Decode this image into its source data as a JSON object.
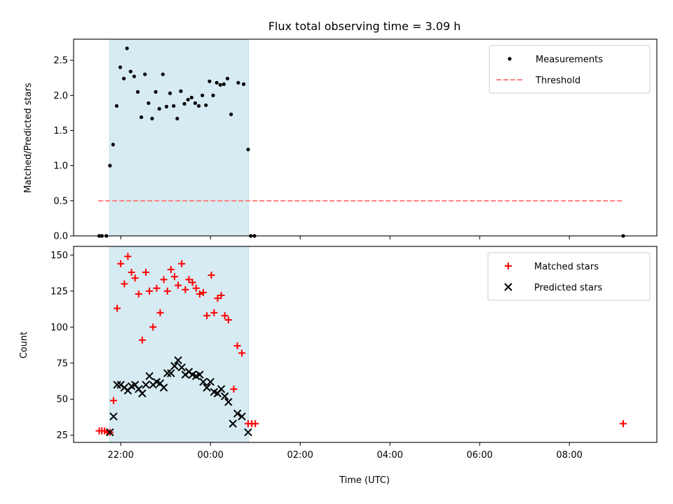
{
  "chart_data": {
    "title": "Flux total observing time = 3.09 h",
    "type": "scatter",
    "shared_x": {
      "label": "Time (UTC)",
      "unit": "hours relative to 00:00 UTC",
      "range": [
        -3.05,
        9.95
      ],
      "ticks": [
        -2,
        0,
        2,
        4,
        6,
        8
      ],
      "tick_labels": [
        "22:00",
        "00:00",
        "02:00",
        "04:00",
        "06:00",
        "08:00"
      ]
    },
    "shaded_span": {
      "x": [
        -2.25,
        0.85
      ],
      "color": "#add8e6"
    },
    "panels": [
      {
        "ylabel": "Matched/Predicted stars",
        "ylim": [
          0,
          2.8
        ],
        "yticks": [
          0.0,
          0.5,
          1.0,
          1.5,
          2.0,
          2.5
        ],
        "ytick_labels": [
          "0.0",
          "0.5",
          "1.0",
          "1.5",
          "2.0",
          "2.5"
        ],
        "legend_position": "upper right",
        "series": [
          {
            "name": "Measurements",
            "marker": "dot",
            "color": "#000000",
            "points": [
              [
                -2.48,
                0.0
              ],
              [
                -2.42,
                0.0
              ],
              [
                -2.32,
                0.0
              ],
              [
                -2.24,
                1.0
              ],
              [
                -2.17,
                1.3
              ],
              [
                -2.09,
                1.85
              ],
              [
                -2.01,
                2.4
              ],
              [
                -1.93,
                2.24
              ],
              [
                -1.86,
                2.67
              ],
              [
                -1.78,
                2.34
              ],
              [
                -1.7,
                2.27
              ],
              [
                -1.62,
                2.05
              ],
              [
                -1.54,
                1.69
              ],
              [
                -1.46,
                2.3
              ],
              [
                -1.38,
                1.89
              ],
              [
                -1.3,
                1.67
              ],
              [
                -1.22,
                2.05
              ],
              [
                -1.14,
                1.81
              ],
              [
                -1.06,
                2.3
              ],
              [
                -0.98,
                1.84
              ],
              [
                -0.9,
                2.03
              ],
              [
                -0.82,
                1.85
              ],
              [
                -0.74,
                1.67
              ],
              [
                -0.66,
                2.06
              ],
              [
                -0.58,
                1.88
              ],
              [
                -0.5,
                1.94
              ],
              [
                -0.42,
                1.97
              ],
              [
                -0.34,
                1.89
              ],
              [
                -0.26,
                1.85
              ],
              [
                -0.18,
                2.0
              ],
              [
                -0.1,
                1.86
              ],
              [
                -0.02,
                2.2
              ],
              [
                0.06,
                2.0
              ],
              [
                0.14,
                2.18
              ],
              [
                0.22,
                2.15
              ],
              [
                0.3,
                2.16
              ],
              [
                0.38,
                2.24
              ],
              [
                0.46,
                1.73
              ],
              [
                0.62,
                2.18
              ],
              [
                0.74,
                2.16
              ],
              [
                0.84,
                1.23
              ],
              [
                0.9,
                0.0
              ],
              [
                0.98,
                0.0
              ],
              [
                9.2,
                0.0
              ]
            ]
          },
          {
            "name": "Threshold",
            "marker": "dashed-line",
            "color": "#ff7f7f",
            "points": [
              [
                -2.5,
                0.5
              ],
              [
                9.2,
                0.5
              ]
            ]
          }
        ]
      },
      {
        "ylabel": "Count",
        "ylim": [
          20,
          156
        ],
        "yticks": [
          25,
          50,
          75,
          100,
          125,
          150
        ],
        "ytick_labels": [
          "25",
          "50",
          "75",
          "100",
          "125",
          "150"
        ],
        "legend_position": "upper right",
        "series": [
          {
            "name": "Matched stars",
            "marker": "plus",
            "color": "#ff0000",
            "points": [
              [
                -2.48,
                28
              ],
              [
                -2.42,
                28
              ],
              [
                -2.36,
                28
              ],
              [
                -2.3,
                27
              ],
              [
                -2.24,
                27
              ],
              [
                -2.16,
                49
              ],
              [
                -2.08,
                113
              ],
              [
                -2.0,
                144
              ],
              [
                -1.92,
                130
              ],
              [
                -1.84,
                149
              ],
              [
                -1.76,
                138
              ],
              [
                -1.68,
                134
              ],
              [
                -1.6,
                123
              ],
              [
                -1.52,
                91
              ],
              [
                -1.44,
                138
              ],
              [
                -1.36,
                125
              ],
              [
                -1.28,
                100
              ],
              [
                -1.2,
                127
              ],
              [
                -1.12,
                110
              ],
              [
                -1.04,
                133
              ],
              [
                -0.96,
                125
              ],
              [
                -0.88,
                140
              ],
              [
                -0.8,
                135
              ],
              [
                -0.72,
                129
              ],
              [
                -0.64,
                144
              ],
              [
                -0.56,
                126
              ],
              [
                -0.48,
                133
              ],
              [
                -0.4,
                131
              ],
              [
                -0.32,
                127
              ],
              [
                -0.24,
                123
              ],
              [
                -0.16,
                124
              ],
              [
                -0.08,
                108
              ],
              [
                0.02,
                136
              ],
              [
                0.08,
                110
              ],
              [
                0.16,
                120
              ],
              [
                0.24,
                122
              ],
              [
                0.32,
                108
              ],
              [
                0.4,
                105
              ],
              [
                0.52,
                57
              ],
              [
                0.6,
                87
              ],
              [
                0.7,
                82
              ],
              [
                0.84,
                33
              ],
              [
                0.92,
                33
              ],
              [
                1.0,
                33
              ],
              [
                9.2,
                33
              ]
            ]
          },
          {
            "name": "Predicted stars",
            "marker": "x",
            "color": "#000000",
            "points": [
              [
                -2.24,
                27
              ],
              [
                -2.16,
                38
              ],
              [
                -2.08,
                60
              ],
              [
                -2.0,
                60
              ],
              [
                -1.92,
                58
              ],
              [
                -1.84,
                56
              ],
              [
                -1.76,
                59
              ],
              [
                -1.68,
                60
              ],
              [
                -1.6,
                57
              ],
              [
                -1.52,
                54
              ],
              [
                -1.44,
                60
              ],
              [
                -1.36,
                66
              ],
              [
                -1.28,
                60
              ],
              [
                -1.2,
                62
              ],
              [
                -1.12,
                61
              ],
              [
                -1.04,
                58
              ],
              [
                -0.96,
                68
              ],
              [
                -0.88,
                68
              ],
              [
                -0.8,
                73
              ],
              [
                -0.72,
                77
              ],
              [
                -0.64,
                72
              ],
              [
                -0.56,
                67
              ],
              [
                -0.48,
                69
              ],
              [
                -0.4,
                67
              ],
              [
                -0.32,
                66
              ],
              [
                -0.24,
                67
              ],
              [
                -0.16,
                62
              ],
              [
                -0.08,
                58
              ],
              [
                0.0,
                62
              ],
              [
                0.08,
                55
              ],
              [
                0.16,
                54
              ],
              [
                0.24,
                57
              ],
              [
                0.32,
                52
              ],
              [
                0.4,
                48
              ],
              [
                0.5,
                33
              ],
              [
                0.6,
                40
              ],
              [
                0.7,
                38
              ],
              [
                0.84,
                27
              ]
            ]
          }
        ]
      }
    ]
  }
}
